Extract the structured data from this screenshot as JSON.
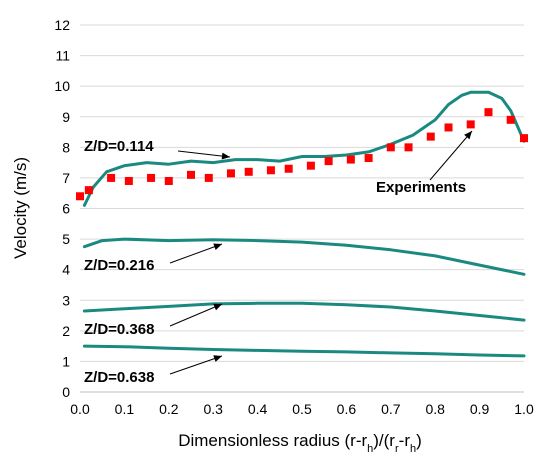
{
  "chart_data": {
    "type": "line",
    "xlabel": "Dimensionless radius (r-r",
    "xlabel_parts": [
      "Dimensionless radius (r-r",
      "h",
      ")/(r",
      "r",
      "-r",
      "h",
      ")"
    ],
    "ylabel": "Velocity (m/s)",
    "xlim": [
      0.0,
      1.0
    ],
    "ylim": [
      0,
      12
    ],
    "x_ticks": [
      "0.0",
      "0.1",
      "0.2",
      "0.3",
      "0.4",
      "0.5",
      "0.6",
      "0.7",
      "0.8",
      "0.9",
      "1.0"
    ],
    "y_ticks": [
      "0",
      "1",
      "2",
      "3",
      "4",
      "5",
      "6",
      "7",
      "8",
      "9",
      "10",
      "11",
      "12"
    ],
    "grid": "horizontal",
    "colors": {
      "simulation": "#1a8a80",
      "experiments": "#ff0000",
      "grid": "#d9d9d9"
    },
    "series": [
      {
        "name": "Z/D=0.114",
        "style": "line",
        "x": [
          0.01,
          0.03,
          0.06,
          0.1,
          0.15,
          0.2,
          0.25,
          0.3,
          0.35,
          0.4,
          0.45,
          0.5,
          0.55,
          0.6,
          0.65,
          0.7,
          0.75,
          0.8,
          0.83,
          0.86,
          0.88,
          0.9,
          0.92,
          0.95,
          0.97,
          1.0
        ],
        "y": [
          6.1,
          6.7,
          7.2,
          7.4,
          7.5,
          7.45,
          7.55,
          7.5,
          7.6,
          7.6,
          7.55,
          7.7,
          7.7,
          7.75,
          7.85,
          8.1,
          8.4,
          8.9,
          9.4,
          9.7,
          9.8,
          9.8,
          9.8,
          9.6,
          9.2,
          8.2
        ]
      },
      {
        "name": "Experiments",
        "style": "markers",
        "x": [
          0.0,
          0.02,
          0.07,
          0.11,
          0.16,
          0.2,
          0.25,
          0.29,
          0.34,
          0.38,
          0.43,
          0.47,
          0.52,
          0.56,
          0.61,
          0.65,
          0.7,
          0.74,
          0.79,
          0.83,
          0.88,
          0.92,
          0.97,
          1.0
        ],
        "y": [
          6.4,
          6.6,
          7.0,
          6.9,
          7.0,
          6.9,
          7.1,
          7.0,
          7.15,
          7.2,
          7.25,
          7.3,
          7.4,
          7.55,
          7.6,
          7.65,
          8.0,
          8.0,
          8.35,
          8.65,
          8.75,
          9.15,
          8.9,
          8.3
        ]
      },
      {
        "name": "Z/D=0.216",
        "style": "line",
        "x": [
          0.01,
          0.05,
          0.1,
          0.2,
          0.3,
          0.4,
          0.5,
          0.6,
          0.7,
          0.8,
          0.9,
          1.0
        ],
        "y": [
          4.75,
          4.95,
          5.0,
          4.95,
          4.98,
          4.95,
          4.9,
          4.8,
          4.65,
          4.45,
          4.15,
          3.85
        ]
      },
      {
        "name": "Z/D=0.368",
        "style": "line",
        "x": [
          0.01,
          0.1,
          0.2,
          0.3,
          0.4,
          0.5,
          0.6,
          0.7,
          0.8,
          0.9,
          1.0
        ],
        "y": [
          2.65,
          2.72,
          2.8,
          2.88,
          2.9,
          2.9,
          2.85,
          2.78,
          2.65,
          2.5,
          2.35
        ]
      },
      {
        "name": "Z/D=0.638",
        "style": "line",
        "x": [
          0.01,
          0.1,
          0.2,
          0.3,
          0.4,
          0.5,
          0.6,
          0.7,
          0.8,
          0.9,
          1.0
        ],
        "y": [
          1.5,
          1.48,
          1.43,
          1.39,
          1.36,
          1.33,
          1.31,
          1.28,
          1.25,
          1.21,
          1.18
        ]
      }
    ],
    "annotations": [
      {
        "text": "Z/D=0.114",
        "series": "Z/D=0.114"
      },
      {
        "text": "Experiments",
        "series": "Experiments"
      },
      {
        "text": "Z/D=0.216",
        "series": "Z/D=0.216"
      },
      {
        "text": "Z/D=0.368",
        "series": "Z/D=0.368"
      },
      {
        "text": "Z/D=0.638",
        "series": "Z/D=0.638"
      }
    ]
  }
}
